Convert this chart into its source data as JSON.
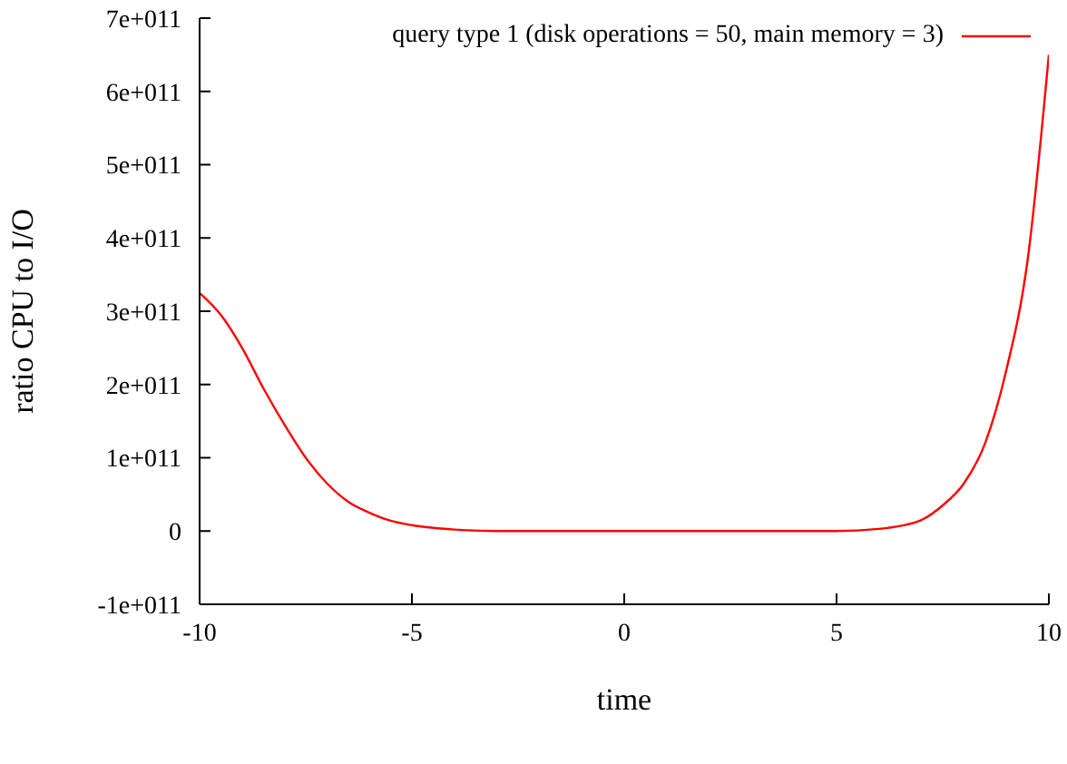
{
  "chart_data": {
    "type": "line",
    "xlabel": "time",
    "ylabel": "ratio CPU to I/O",
    "x": [
      -10,
      -9.5,
      -9,
      -8.5,
      -8,
      -7.5,
      -7,
      -6.5,
      -6,
      -5.5,
      -5,
      -4,
      -3,
      -2,
      0,
      2,
      4,
      5,
      6,
      6.5,
      7,
      7.5,
      8,
      8.5,
      9,
      9.5,
      10
    ],
    "series": [
      {
        "name": "query type 1 (disk operations = 50, main memory = 3)",
        "color": "#ff0000",
        "values": [
          325000000000,
          295000000000,
          250000000000,
          195000000000,
          145000000000,
          100000000000,
          65000000000,
          40000000000,
          25000000000,
          14000000000,
          8000000000,
          2000000000,
          0,
          0,
          0,
          0,
          0,
          0,
          3000000000,
          7000000000,
          15000000000,
          35000000000,
          65000000000,
          120000000000,
          220000000000,
          370000000000,
          650000000000
        ]
      }
    ],
    "xlim": [
      -10,
      10
    ],
    "xticks": [
      -10,
      -5,
      0,
      5,
      10
    ],
    "ylim": [
      -100000000000,
      700000000000
    ],
    "yticks": [
      {
        "value": -100000000000,
        "label": "-1e+011"
      },
      {
        "value": 0,
        "label": "0"
      },
      {
        "value": 100000000000,
        "label": "1e+011"
      },
      {
        "value": 200000000000,
        "label": "2e+011"
      },
      {
        "value": 300000000000,
        "label": "3e+011"
      },
      {
        "value": 400000000000,
        "label": "4e+011"
      },
      {
        "value": 500000000000,
        "label": "5e+011"
      },
      {
        "value": 600000000000,
        "label": "6e+011"
      },
      {
        "value": 700000000000,
        "label": "7e+011"
      }
    ],
    "grid": false,
    "legend": "top right",
    "marker": "none",
    "line_style": "solid"
  }
}
